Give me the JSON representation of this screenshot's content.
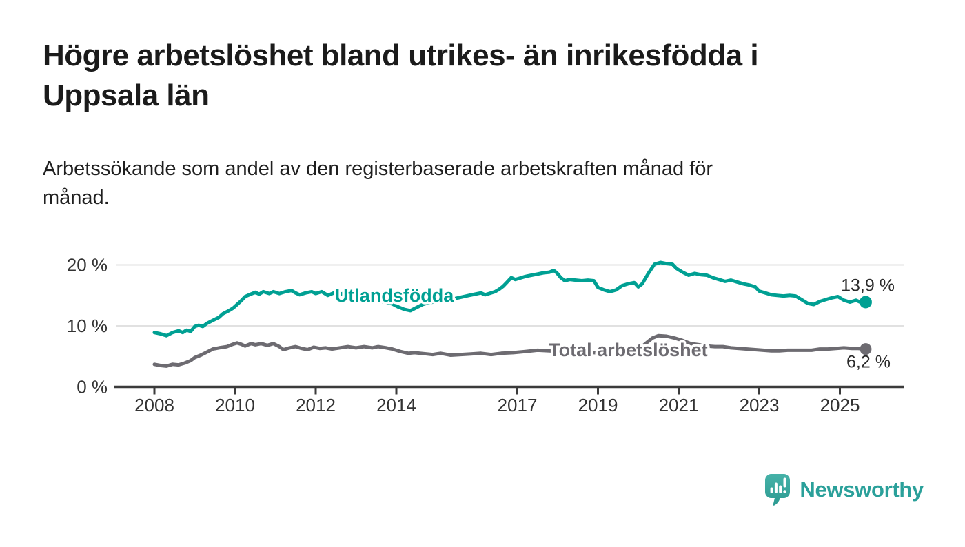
{
  "header": {
    "title": "Högre arbetslöshet bland utrikes- än inrikesfödda i Uppsala län",
    "title_lines": [
      "Högre arbetslöshet bland utrikes- än inrikesfödda i",
      "Uppsala län"
    ],
    "subtitle": "Arbetssökande som andel av den registerbaserade arbetskraften månad för månad.",
    "subtitle_lines": [
      "Arbetssökande som andel av den registerbaserade arbetskraften månad för",
      "månad."
    ]
  },
  "branding": {
    "logo_text": "Newsworthy",
    "logo_icon": "speech-bubble-bar-chart-icon",
    "logo_color": "#2aa09a"
  },
  "colors": {
    "axis": "#3b3b3b",
    "grid": "#e1e1e1",
    "tick_label": "#333333",
    "value_label": "#2b2b2b",
    "background": "#ffffff"
  },
  "chart_data": {
    "type": "line",
    "title": "Högre arbetslöshet bland utrikes- än inrikesfödda i Uppsala län",
    "subtitle": "Arbetssökande som andel av den registerbaserade arbetskraften månad för månad.",
    "unit": "%",
    "xlabel": "",
    "ylabel": "",
    "xlim": [
      2007.0,
      2026.6
    ],
    "ylim": [
      0,
      22
    ],
    "grid": "horizontal",
    "x_ticks": [
      2008,
      2010,
      2012,
      2014,
      2017,
      2019,
      2021,
      2023,
      2025
    ],
    "y_ticks": [
      {
        "value": 0,
        "label": "0 %"
      },
      {
        "value": 10,
        "label": "10 %"
      },
      {
        "value": 20,
        "label": "20 %"
      }
    ],
    "series": [
      {
        "name": "Utlandsfödda",
        "color": "#00a093",
        "end_label": "13,9 %",
        "end_value": 13.9,
        "end_label_position": "above",
        "label_anchor": {
          "x": 2013.95,
          "y": 15.0
        },
        "points": [
          [
            2008.0,
            8.9
          ],
          [
            2008.15,
            8.7
          ],
          [
            2008.3,
            8.4
          ],
          [
            2008.45,
            8.9
          ],
          [
            2008.6,
            9.2
          ],
          [
            2008.7,
            8.9
          ],
          [
            2008.8,
            9.3
          ],
          [
            2008.9,
            9.1
          ],
          [
            2009.0,
            9.9
          ],
          [
            2009.1,
            10.1
          ],
          [
            2009.2,
            9.9
          ],
          [
            2009.3,
            10.4
          ],
          [
            2009.45,
            10.9
          ],
          [
            2009.6,
            11.4
          ],
          [
            2009.7,
            12.0
          ],
          [
            2009.85,
            12.5
          ],
          [
            2009.95,
            12.9
          ],
          [
            2010.05,
            13.5
          ],
          [
            2010.15,
            14.1
          ],
          [
            2010.25,
            14.8
          ],
          [
            2010.35,
            15.1
          ],
          [
            2010.5,
            15.5
          ],
          [
            2010.6,
            15.2
          ],
          [
            2010.7,
            15.6
          ],
          [
            2010.85,
            15.3
          ],
          [
            2010.95,
            15.6
          ],
          [
            2011.1,
            15.3
          ],
          [
            2011.25,
            15.6
          ],
          [
            2011.4,
            15.8
          ],
          [
            2011.5,
            15.4
          ],
          [
            2011.6,
            15.1
          ],
          [
            2011.75,
            15.4
          ],
          [
            2011.9,
            15.6
          ],
          [
            2012.0,
            15.3
          ],
          [
            2012.15,
            15.6
          ],
          [
            2012.3,
            15.0
          ],
          [
            2012.45,
            15.4
          ],
          [
            2012.6,
            15.2
          ],
          [
            2012.75,
            15.4
          ],
          [
            2012.9,
            15.0
          ],
          [
            2013.1,
            14.7
          ],
          [
            2013.3,
            14.4
          ],
          [
            2013.5,
            14.2
          ],
          [
            2013.7,
            13.9
          ],
          [
            2013.9,
            13.6
          ],
          [
            2014.05,
            13.1
          ],
          [
            2014.2,
            12.7
          ],
          [
            2014.35,
            12.5
          ],
          [
            2014.5,
            13.0
          ],
          [
            2014.65,
            13.5
          ],
          [
            2014.8,
            13.8
          ],
          [
            2015.0,
            14.0
          ],
          [
            2015.2,
            14.2
          ],
          [
            2015.4,
            14.4
          ],
          [
            2015.6,
            14.7
          ],
          [
            2015.8,
            15.0
          ],
          [
            2015.95,
            15.2
          ],
          [
            2016.1,
            15.4
          ],
          [
            2016.2,
            15.1
          ],
          [
            2016.3,
            15.3
          ],
          [
            2016.45,
            15.6
          ],
          [
            2016.55,
            16.0
          ],
          [
            2016.65,
            16.5
          ],
          [
            2016.75,
            17.2
          ],
          [
            2016.85,
            17.9
          ],
          [
            2016.95,
            17.6
          ],
          [
            2017.05,
            17.8
          ],
          [
            2017.2,
            18.1
          ],
          [
            2017.35,
            18.3
          ],
          [
            2017.5,
            18.5
          ],
          [
            2017.65,
            18.7
          ],
          [
            2017.8,
            18.8
          ],
          [
            2017.9,
            19.1
          ],
          [
            2017.98,
            18.7
          ],
          [
            2018.08,
            17.9
          ],
          [
            2018.18,
            17.4
          ],
          [
            2018.3,
            17.6
          ],
          [
            2018.45,
            17.5
          ],
          [
            2018.6,
            17.4
          ],
          [
            2018.75,
            17.5
          ],
          [
            2018.9,
            17.4
          ],
          [
            2019.0,
            16.3
          ],
          [
            2019.15,
            15.9
          ],
          [
            2019.3,
            15.6
          ],
          [
            2019.45,
            15.9
          ],
          [
            2019.6,
            16.6
          ],
          [
            2019.75,
            16.9
          ],
          [
            2019.9,
            17.1
          ],
          [
            2020.0,
            16.4
          ],
          [
            2020.1,
            16.9
          ],
          [
            2020.25,
            18.6
          ],
          [
            2020.4,
            20.1
          ],
          [
            2020.55,
            20.4
          ],
          [
            2020.7,
            20.2
          ],
          [
            2020.85,
            20.1
          ],
          [
            2020.95,
            19.4
          ],
          [
            2021.1,
            18.8
          ],
          [
            2021.25,
            18.3
          ],
          [
            2021.4,
            18.6
          ],
          [
            2021.55,
            18.4
          ],
          [
            2021.7,
            18.3
          ],
          [
            2021.85,
            17.9
          ],
          [
            2022.0,
            17.6
          ],
          [
            2022.15,
            17.3
          ],
          [
            2022.3,
            17.5
          ],
          [
            2022.45,
            17.2
          ],
          [
            2022.6,
            16.9
          ],
          [
            2022.75,
            16.7
          ],
          [
            2022.9,
            16.4
          ],
          [
            2023.0,
            15.7
          ],
          [
            2023.15,
            15.4
          ],
          [
            2023.3,
            15.1
          ],
          [
            2023.45,
            15.0
          ],
          [
            2023.6,
            14.9
          ],
          [
            2023.75,
            15.0
          ],
          [
            2023.9,
            14.9
          ],
          [
            2024.05,
            14.3
          ],
          [
            2024.2,
            13.7
          ],
          [
            2024.35,
            13.5
          ],
          [
            2024.5,
            14.0
          ],
          [
            2024.65,
            14.3
          ],
          [
            2024.8,
            14.6
          ],
          [
            2024.95,
            14.8
          ],
          [
            2025.1,
            14.2
          ],
          [
            2025.25,
            13.9
          ],
          [
            2025.4,
            14.2
          ],
          [
            2025.5,
            13.9
          ],
          [
            2025.64,
            13.9
          ]
        ]
      },
      {
        "name": "Total arbetslöshet",
        "color": "#6d6b71",
        "end_label": "6,2 %",
        "end_value": 6.2,
        "end_label_position": "below",
        "label_anchor": {
          "x": 2019.75,
          "y": 6.05
        },
        "points": [
          [
            2008.0,
            3.7
          ],
          [
            2008.15,
            3.5
          ],
          [
            2008.3,
            3.4
          ],
          [
            2008.45,
            3.7
          ],
          [
            2008.6,
            3.6
          ],
          [
            2008.75,
            3.9
          ],
          [
            2008.9,
            4.3
          ],
          [
            2009.0,
            4.8
          ],
          [
            2009.15,
            5.2
          ],
          [
            2009.3,
            5.7
          ],
          [
            2009.45,
            6.2
          ],
          [
            2009.6,
            6.4
          ],
          [
            2009.8,
            6.6
          ],
          [
            2009.95,
            7.0
          ],
          [
            2010.05,
            7.2
          ],
          [
            2010.15,
            7.0
          ],
          [
            2010.25,
            6.7
          ],
          [
            2010.4,
            7.1
          ],
          [
            2010.5,
            6.9
          ],
          [
            2010.65,
            7.1
          ],
          [
            2010.8,
            6.8
          ],
          [
            2010.95,
            7.1
          ],
          [
            2011.1,
            6.6
          ],
          [
            2011.2,
            6.1
          ],
          [
            2011.35,
            6.4
          ],
          [
            2011.5,
            6.6
          ],
          [
            2011.65,
            6.3
          ],
          [
            2011.8,
            6.1
          ],
          [
            2011.95,
            6.5
          ],
          [
            2012.1,
            6.3
          ],
          [
            2012.25,
            6.4
          ],
          [
            2012.4,
            6.2
          ],
          [
            2012.6,
            6.4
          ],
          [
            2012.8,
            6.6
          ],
          [
            2013.0,
            6.4
          ],
          [
            2013.2,
            6.6
          ],
          [
            2013.4,
            6.4
          ],
          [
            2013.55,
            6.6
          ],
          [
            2013.75,
            6.4
          ],
          [
            2013.9,
            6.2
          ],
          [
            2014.1,
            5.8
          ],
          [
            2014.3,
            5.5
          ],
          [
            2014.45,
            5.6
          ],
          [
            2014.6,
            5.5
          ],
          [
            2014.75,
            5.4
          ],
          [
            2014.9,
            5.3
          ],
          [
            2015.1,
            5.5
          ],
          [
            2015.35,
            5.2
          ],
          [
            2015.6,
            5.3
          ],
          [
            2015.85,
            5.4
          ],
          [
            2016.1,
            5.5
          ],
          [
            2016.35,
            5.3
          ],
          [
            2016.6,
            5.5
          ],
          [
            2016.9,
            5.6
          ],
          [
            2017.2,
            5.8
          ],
          [
            2017.5,
            6.0
          ],
          [
            2017.8,
            5.9
          ],
          [
            2018.0,
            5.8
          ],
          [
            2018.3,
            5.6
          ],
          [
            2018.6,
            5.7
          ],
          [
            2018.9,
            5.6
          ],
          [
            2019.2,
            5.5
          ],
          [
            2019.5,
            5.7
          ],
          [
            2019.8,
            5.9
          ],
          [
            2020.0,
            6.1
          ],
          [
            2020.2,
            7.2
          ],
          [
            2020.35,
            8.0
          ],
          [
            2020.5,
            8.4
          ],
          [
            2020.7,
            8.3
          ],
          [
            2020.9,
            8.0
          ],
          [
            2021.1,
            7.6
          ],
          [
            2021.3,
            7.1
          ],
          [
            2021.5,
            6.9
          ],
          [
            2021.7,
            6.7
          ],
          [
            2021.9,
            6.6
          ],
          [
            2022.1,
            6.6
          ],
          [
            2022.3,
            6.4
          ],
          [
            2022.5,
            6.3
          ],
          [
            2022.7,
            6.2
          ],
          [
            2022.9,
            6.1
          ],
          [
            2023.1,
            6.0
          ],
          [
            2023.3,
            5.9
          ],
          [
            2023.5,
            5.9
          ],
          [
            2023.7,
            6.0
          ],
          [
            2023.9,
            6.0
          ],
          [
            2024.1,
            6.0
          ],
          [
            2024.3,
            6.0
          ],
          [
            2024.5,
            6.2
          ],
          [
            2024.7,
            6.2
          ],
          [
            2024.9,
            6.3
          ],
          [
            2025.1,
            6.4
          ],
          [
            2025.3,
            6.3
          ],
          [
            2025.45,
            6.3
          ],
          [
            2025.64,
            6.2
          ]
        ]
      }
    ]
  }
}
